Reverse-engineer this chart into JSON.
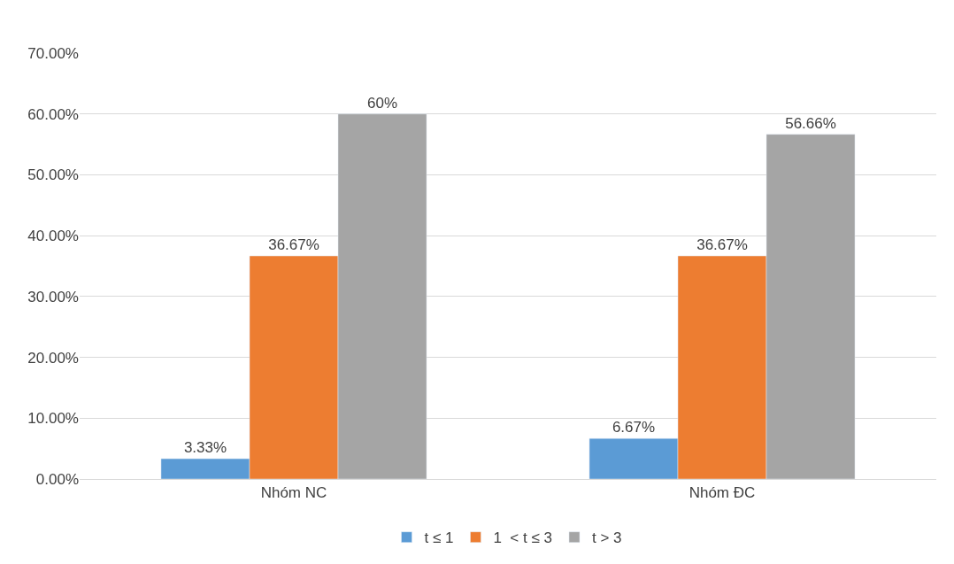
{
  "chart_data": {
    "type": "bar",
    "categories": [
      "Nhóm NC",
      "Nhóm ĐC"
    ],
    "series": [
      {
        "name": "t ≤ 1",
        "color": "#5b9bd5",
        "values": [
          3.33,
          6.67
        ],
        "value_labels": [
          "3.33%",
          "6.67%"
        ]
      },
      {
        "name": "1  < t ≤ 3",
        "color": "#ed7d31",
        "values": [
          36.67,
          36.67
        ],
        "value_labels": [
          "36.67%",
          "36.67%"
        ]
      },
      {
        "name": "t > 3",
        "color": "#a5a5a5",
        "values": [
          60,
          56.66
        ],
        "value_labels": [
          "60%",
          "56.66%"
        ]
      }
    ],
    "ylim": [
      0,
      70
    ],
    "yticks": [
      {
        "value": 0,
        "label": "0.00%"
      },
      {
        "value": 10,
        "label": "10.00%"
      },
      {
        "value": 20,
        "label": "20.00%"
      },
      {
        "value": 30,
        "label": "30.00%"
      },
      {
        "value": 40,
        "label": "40.00%"
      },
      {
        "value": 50,
        "label": "50.00%"
      },
      {
        "value": 60,
        "label": "60.00%"
      },
      {
        "value": 70,
        "label": "70.00%"
      }
    ],
    "grid": "y",
    "legend": "bottom"
  }
}
